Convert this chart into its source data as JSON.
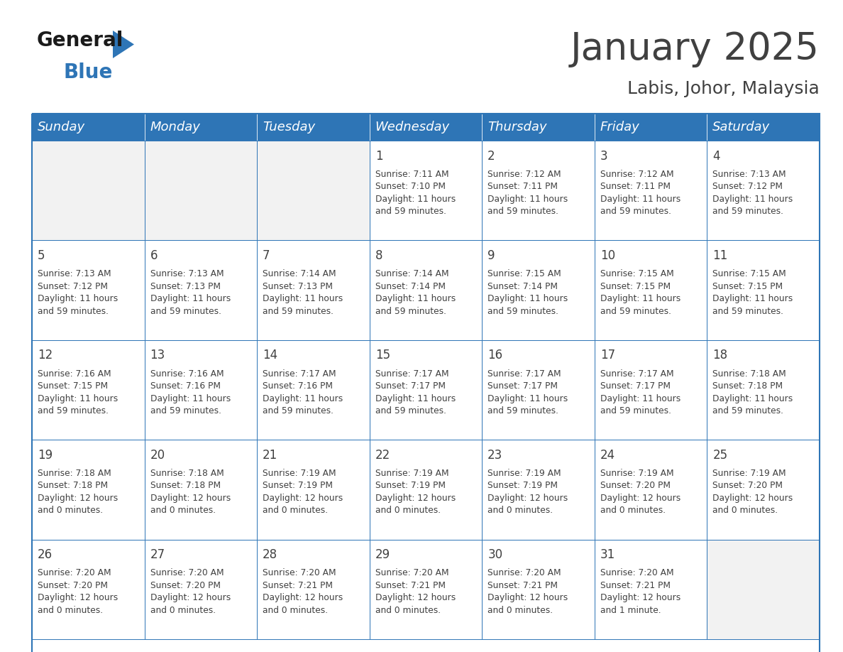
{
  "title": "January 2025",
  "subtitle": "Labis, Johor, Malaysia",
  "header_color": "#2E75B6",
  "header_text_color": "#FFFFFF",
  "cell_bg_color": "#FFFFFF",
  "cell_empty_bg_color": "#F2F2F2",
  "border_color": "#2E75B6",
  "text_color": "#404040",
  "day_headers": [
    "Sunday",
    "Monday",
    "Tuesday",
    "Wednesday",
    "Thursday",
    "Friday",
    "Saturday"
  ],
  "title_fontsize": 38,
  "subtitle_fontsize": 18,
  "header_fontsize": 13,
  "day_num_fontsize": 12,
  "cell_text_fontsize": 8.8,
  "weeks": [
    [
      {
        "day": "",
        "text": ""
      },
      {
        "day": "",
        "text": ""
      },
      {
        "day": "",
        "text": ""
      },
      {
        "day": "1",
        "text": "Sunrise: 7:11 AM\nSunset: 7:10 PM\nDaylight: 11 hours\nand 59 minutes."
      },
      {
        "day": "2",
        "text": "Sunrise: 7:12 AM\nSunset: 7:11 PM\nDaylight: 11 hours\nand 59 minutes."
      },
      {
        "day": "3",
        "text": "Sunrise: 7:12 AM\nSunset: 7:11 PM\nDaylight: 11 hours\nand 59 minutes."
      },
      {
        "day": "4",
        "text": "Sunrise: 7:13 AM\nSunset: 7:12 PM\nDaylight: 11 hours\nand 59 minutes."
      }
    ],
    [
      {
        "day": "5",
        "text": "Sunrise: 7:13 AM\nSunset: 7:12 PM\nDaylight: 11 hours\nand 59 minutes."
      },
      {
        "day": "6",
        "text": "Sunrise: 7:13 AM\nSunset: 7:13 PM\nDaylight: 11 hours\nand 59 minutes."
      },
      {
        "day": "7",
        "text": "Sunrise: 7:14 AM\nSunset: 7:13 PM\nDaylight: 11 hours\nand 59 minutes."
      },
      {
        "day": "8",
        "text": "Sunrise: 7:14 AM\nSunset: 7:14 PM\nDaylight: 11 hours\nand 59 minutes."
      },
      {
        "day": "9",
        "text": "Sunrise: 7:15 AM\nSunset: 7:14 PM\nDaylight: 11 hours\nand 59 minutes."
      },
      {
        "day": "10",
        "text": "Sunrise: 7:15 AM\nSunset: 7:15 PM\nDaylight: 11 hours\nand 59 minutes."
      },
      {
        "day": "11",
        "text": "Sunrise: 7:15 AM\nSunset: 7:15 PM\nDaylight: 11 hours\nand 59 minutes."
      }
    ],
    [
      {
        "day": "12",
        "text": "Sunrise: 7:16 AM\nSunset: 7:15 PM\nDaylight: 11 hours\nand 59 minutes."
      },
      {
        "day": "13",
        "text": "Sunrise: 7:16 AM\nSunset: 7:16 PM\nDaylight: 11 hours\nand 59 minutes."
      },
      {
        "day": "14",
        "text": "Sunrise: 7:17 AM\nSunset: 7:16 PM\nDaylight: 11 hours\nand 59 minutes."
      },
      {
        "day": "15",
        "text": "Sunrise: 7:17 AM\nSunset: 7:17 PM\nDaylight: 11 hours\nand 59 minutes."
      },
      {
        "day": "16",
        "text": "Sunrise: 7:17 AM\nSunset: 7:17 PM\nDaylight: 11 hours\nand 59 minutes."
      },
      {
        "day": "17",
        "text": "Sunrise: 7:17 AM\nSunset: 7:17 PM\nDaylight: 11 hours\nand 59 minutes."
      },
      {
        "day": "18",
        "text": "Sunrise: 7:18 AM\nSunset: 7:18 PM\nDaylight: 11 hours\nand 59 minutes."
      }
    ],
    [
      {
        "day": "19",
        "text": "Sunrise: 7:18 AM\nSunset: 7:18 PM\nDaylight: 12 hours\nand 0 minutes."
      },
      {
        "day": "20",
        "text": "Sunrise: 7:18 AM\nSunset: 7:18 PM\nDaylight: 12 hours\nand 0 minutes."
      },
      {
        "day": "21",
        "text": "Sunrise: 7:19 AM\nSunset: 7:19 PM\nDaylight: 12 hours\nand 0 minutes."
      },
      {
        "day": "22",
        "text": "Sunrise: 7:19 AM\nSunset: 7:19 PM\nDaylight: 12 hours\nand 0 minutes."
      },
      {
        "day": "23",
        "text": "Sunrise: 7:19 AM\nSunset: 7:19 PM\nDaylight: 12 hours\nand 0 minutes."
      },
      {
        "day": "24",
        "text": "Sunrise: 7:19 AM\nSunset: 7:20 PM\nDaylight: 12 hours\nand 0 minutes."
      },
      {
        "day": "25",
        "text": "Sunrise: 7:19 AM\nSunset: 7:20 PM\nDaylight: 12 hours\nand 0 minutes."
      }
    ],
    [
      {
        "day": "26",
        "text": "Sunrise: 7:20 AM\nSunset: 7:20 PM\nDaylight: 12 hours\nand 0 minutes."
      },
      {
        "day": "27",
        "text": "Sunrise: 7:20 AM\nSunset: 7:20 PM\nDaylight: 12 hours\nand 0 minutes."
      },
      {
        "day": "28",
        "text": "Sunrise: 7:20 AM\nSunset: 7:21 PM\nDaylight: 12 hours\nand 0 minutes."
      },
      {
        "day": "29",
        "text": "Sunrise: 7:20 AM\nSunset: 7:21 PM\nDaylight: 12 hours\nand 0 minutes."
      },
      {
        "day": "30",
        "text": "Sunrise: 7:20 AM\nSunset: 7:21 PM\nDaylight: 12 hours\nand 0 minutes."
      },
      {
        "day": "31",
        "text": "Sunrise: 7:20 AM\nSunset: 7:21 PM\nDaylight: 12 hours\nand 1 minute."
      },
      {
        "day": "",
        "text": ""
      }
    ]
  ],
  "logo_general_color": "#1a1a1a",
  "logo_blue_color": "#2E75B6",
  "background_color": "#FFFFFF"
}
